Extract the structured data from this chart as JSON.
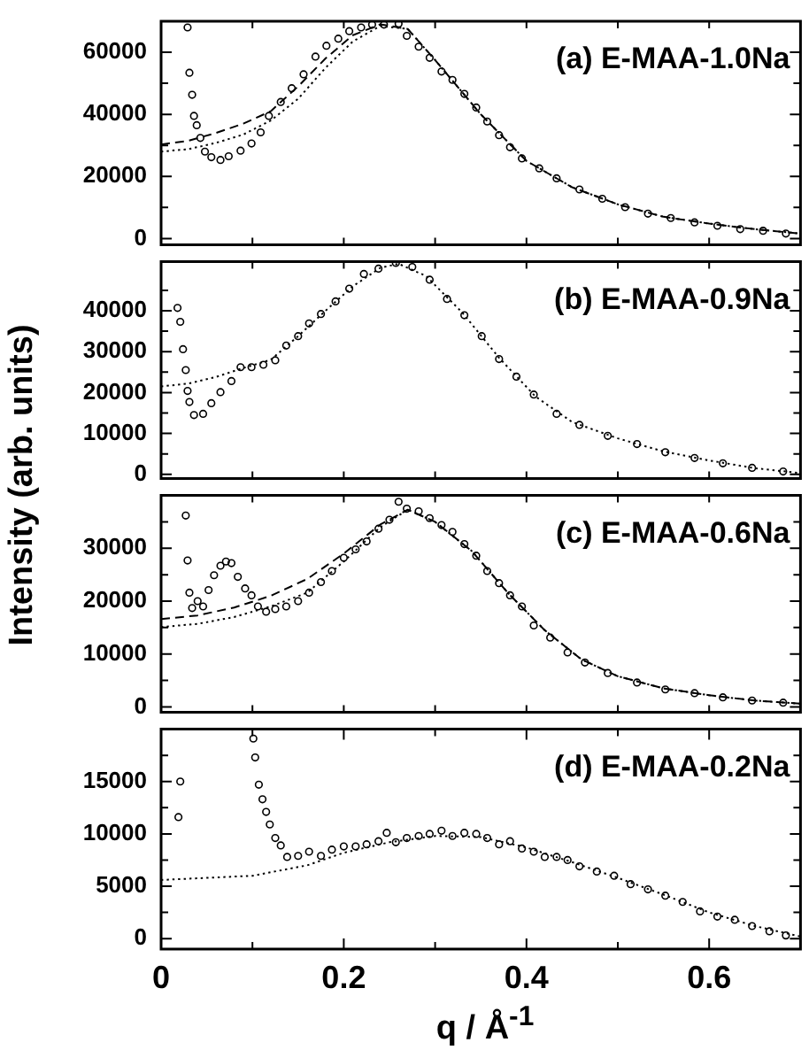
{
  "chart_data": [
    {
      "type": "scatter",
      "ylabel": "Intensity (arb. units)",
      "annotations": [
        "(a) E-MAA-1.0Na"
      ],
      "tick_labels": "y",
      "xlim": [
        0,
        0.7
      ],
      "xticks": [
        {
          "value": 0,
          "label": null
        },
        {
          "value": 0.1,
          "label": null
        },
        {
          "value": 0.2,
          "label": null
        },
        {
          "value": 0.3,
          "label": null
        },
        {
          "value": 0.4,
          "label": null
        },
        {
          "value": 0.5,
          "label": null
        },
        {
          "value": 0.6,
          "label": null
        }
      ],
      "ylim": [
        -2000,
        70000
      ],
      "yticks": [
        0,
        {
          "value": 10000,
          "label": null
        },
        20000,
        {
          "value": 30000,
          "label": null
        },
        40000,
        {
          "value": 50000,
          "label": null
        },
        60000
      ],
      "series": [
        {
          "marker": "circle",
          "color": "#000000",
          "x": [
            0.029,
            0.031,
            0.034,
            0.036,
            0.039,
            0.043,
            0.048,
            0.055,
            0.065,
            0.074,
            0.087,
            0.099,
            0.109,
            0.118,
            0.131,
            0.143,
            0.156,
            0.169,
            0.181,
            0.194,
            0.206,
            0.219,
            0.231,
            0.244,
            0.26,
            0.269,
            0.282,
            0.294,
            0.307,
            0.319,
            0.332,
            0.345,
            0.357,
            0.37,
            0.382,
            0.395,
            0.414,
            0.433,
            0.458,
            0.483,
            0.508,
            0.533,
            0.558,
            0.584,
            0.609,
            0.634,
            0.659,
            0.684
          ],
          "values": [
            68000,
            53400,
            46300,
            39500,
            36500,
            32400,
            28000,
            26200,
            25300,
            26500,
            28300,
            30600,
            34200,
            39500,
            44000,
            48400,
            52900,
            58600,
            62100,
            64400,
            66800,
            68000,
            68900,
            68900,
            69200,
            65300,
            61800,
            58200,
            53800,
            51100,
            46600,
            42200,
            37700,
            33300,
            29400,
            25800,
            22600,
            19400,
            15800,
            12800,
            10100,
            8000,
            6600,
            5200,
            4100,
            3000,
            2500,
            1600
          ]
        },
        {
          "type": "line",
          "line_style": "dashed",
          "color": "#000000",
          "x": [
            0,
            0.03,
            0.06,
            0.09,
            0.12,
            0.15,
            0.18,
            0.21,
            0.24,
            0.27,
            0.3,
            0.35,
            0.4,
            0.45,
            0.5,
            0.55,
            0.6,
            0.65,
            0.7
          ],
          "values": [
            30300,
            31500,
            34000,
            37000,
            41000,
            49000,
            58000,
            65500,
            69000,
            67500,
            57500,
            40000,
            25000,
            16500,
            11000,
            7000,
            4800,
            3000,
            1600
          ]
        },
        {
          "type": "line",
          "line_style": "dotted",
          "color": "#000000",
          "x": [
            0,
            0.03,
            0.06,
            0.09,
            0.12,
            0.15,
            0.18,
            0.21,
            0.24,
            0.27,
            0.3,
            0.35,
            0.4,
            0.45,
            0.5,
            0.55,
            0.6,
            0.65,
            0.7
          ],
          "values": [
            28000,
            28800,
            30800,
            33500,
            38000,
            45000,
            55000,
            63500,
            68500,
            67500,
            57500,
            40000,
            25000,
            16500,
            11000,
            7000,
            4800,
            3000,
            1600
          ]
        }
      ]
    },
    {
      "type": "scatter",
      "annotations": [
        "(b) E-MAA-0.9Na"
      ],
      "tick_labels": "y",
      "xlim": [
        0,
        0.7
      ],
      "xticks": [
        {
          "value": 0,
          "label": null
        },
        {
          "value": 0.1,
          "label": null
        },
        {
          "value": 0.2,
          "label": null
        },
        {
          "value": 0.3,
          "label": null
        },
        {
          "value": 0.4,
          "label": null
        },
        {
          "value": 0.5,
          "label": null
        },
        {
          "value": 0.6,
          "label": null
        }
      ],
      "ylim": [
        -1000,
        52000
      ],
      "yticks": [
        0,
        {
          "value": 5000,
          "label": null
        },
        10000,
        {
          "value": 15000,
          "label": null
        },
        20000,
        {
          "value": 25000,
          "label": null
        },
        30000,
        {
          "value": 35000,
          "label": null
        },
        40000,
        {
          "value": 45000,
          "label": null
        }
      ],
      "series": [
        {
          "marker": "circle",
          "color": "#000000",
          "x": [
            0.018,
            0.021,
            0.024,
            0.027,
            0.029,
            0.031,
            0.036,
            0.046,
            0.055,
            0.065,
            0.077,
            0.087,
            0.099,
            0.112,
            0.125,
            0.137,
            0.15,
            0.162,
            0.175,
            0.191,
            0.206,
            0.222,
            0.238,
            0.257,
            0.275,
            0.294,
            0.313,
            0.332,
            0.351,
            0.37,
            0.389,
            0.408,
            0.433,
            0.458,
            0.489,
            0.521,
            0.552,
            0.584,
            0.615,
            0.647,
            0.681
          ],
          "values": [
            40700,
            37300,
            30600,
            25500,
            20400,
            17700,
            14500,
            14800,
            17400,
            20100,
            22800,
            26200,
            26200,
            26800,
            27900,
            31500,
            33800,
            36900,
            39200,
            42300,
            45400,
            49000,
            50300,
            51700,
            50700,
            47600,
            42900,
            38900,
            33800,
            28200,
            23900,
            19500,
            14800,
            12100,
            9400,
            7400,
            5400,
            4000,
            2700,
            1600,
            700
          ]
        },
        {
          "type": "line",
          "line_style": "dotted",
          "color": "#000000",
          "x": [
            0,
            0.03,
            0.06,
            0.09,
            0.12,
            0.15,
            0.18,
            0.21,
            0.24,
            0.26,
            0.29,
            0.33,
            0.37,
            0.41,
            0.45,
            0.5,
            0.55,
            0.6,
            0.65,
            0.7
          ],
          "values": [
            21500,
            22200,
            23800,
            26000,
            28000,
            33800,
            40000,
            46000,
            50500,
            51500,
            48500,
            39500,
            28500,
            19000,
            12800,
            8800,
            5600,
            3400,
            1500,
            300
          ]
        }
      ]
    },
    {
      "type": "scatter",
      "annotations": [
        "(c) E-MAA-0.6Na"
      ],
      "tick_labels": "y",
      "xlim": [
        0,
        0.7
      ],
      "xticks": [
        {
          "value": 0,
          "label": null
        },
        {
          "value": 0.1,
          "label": null
        },
        {
          "value": 0.2,
          "label": null
        },
        {
          "value": 0.3,
          "label": null
        },
        {
          "value": 0.4,
          "label": null
        },
        {
          "value": 0.5,
          "label": null
        },
        {
          "value": 0.6,
          "label": null
        }
      ],
      "ylim": [
        -1000,
        40000
      ],
      "yticks": [
        0,
        {
          "value": 5000,
          "label": null
        },
        10000,
        {
          "value": 15000,
          "label": null
        },
        20000,
        {
          "value": 25000,
          "label": null
        },
        30000,
        {
          "value": 35000,
          "label": null
        }
      ],
      "series": [
        {
          "marker": "circle",
          "color": "#000000",
          "x": [
            0.027,
            0.029,
            0.031,
            0.034,
            0.04,
            0.046,
            0.052,
            0.058,
            0.065,
            0.071,
            0.077,
            0.084,
            0.092,
            0.099,
            0.106,
            0.115,
            0.125,
            0.137,
            0.15,
            0.162,
            0.175,
            0.187,
            0.2,
            0.213,
            0.225,
            0.238,
            0.25,
            0.26,
            0.269,
            0.282,
            0.294,
            0.307,
            0.319,
            0.332,
            0.345,
            0.357,
            0.37,
            0.382,
            0.395,
            0.408,
            0.426,
            0.445,
            0.464,
            0.489,
            0.521,
            0.552,
            0.584,
            0.615,
            0.647,
            0.681
          ],
          "values": [
            36200,
            27700,
            21600,
            18700,
            20000,
            19000,
            22100,
            24900,
            26700,
            27500,
            27200,
            24600,
            22400,
            21100,
            19000,
            18000,
            18500,
            19000,
            20000,
            21600,
            23600,
            25700,
            28200,
            29800,
            31300,
            33700,
            35400,
            38800,
            37500,
            37000,
            35700,
            34400,
            33100,
            30800,
            28600,
            25700,
            23400,
            21100,
            19000,
            15400,
            13100,
            10300,
            8400,
            6400,
            4600,
            3300,
            2600,
            1800,
            1200,
            800
          ]
        },
        {
          "type": "line",
          "line_style": "dashed",
          "color": "#000000",
          "x": [
            0,
            0.04,
            0.08,
            0.12,
            0.16,
            0.2,
            0.24,
            0.27,
            0.3,
            0.34,
            0.38,
            0.42,
            0.46,
            0.5,
            0.55,
            0.6,
            0.65,
            0.7
          ],
          "values": [
            16600,
            17300,
            18800,
            21000,
            24200,
            29000,
            34500,
            37300,
            35000,
            29500,
            21500,
            14500,
            9000,
            5800,
            3500,
            2200,
            1200,
            600
          ]
        },
        {
          "type": "line",
          "line_style": "dotted",
          "color": "#000000",
          "x": [
            0,
            0.04,
            0.08,
            0.12,
            0.16,
            0.2,
            0.24,
            0.27,
            0.3,
            0.34,
            0.38,
            0.42,
            0.46,
            0.5,
            0.55,
            0.6,
            0.65,
            0.7
          ],
          "values": [
            15100,
            15700,
            17000,
            19000,
            21600,
            27500,
            34000,
            37300,
            35000,
            29500,
            21500,
            14500,
            9000,
            5800,
            3500,
            2200,
            1200,
            600
          ]
        }
      ]
    },
    {
      "type": "scatter",
      "annotations": [
        "(d) E-MAA-0.2Na"
      ],
      "xlabel": "q / Å$^{-1}$",
      "xlim": [
        0,
        0.7
      ],
      "xticks": [
        0,
        {
          "value": 0.1,
          "label": null
        },
        0.2,
        {
          "value": 0.3,
          "label": null
        },
        0.4,
        {
          "value": 0.5,
          "label": null
        },
        0.6
      ],
      "ylim": [
        -1000,
        20000
      ],
      "yticks": [
        0,
        {
          "value": 2500,
          "label": null
        },
        5000,
        {
          "value": 7500,
          "label": null
        },
        10000,
        {
          "value": 12500,
          "label": null
        },
        15000,
        {
          "value": 17500,
          "label": null
        }
      ],
      "series": [
        {
          "marker": "circle",
          "color": "#000000",
          "x": [
            0.019,
            0.021,
            0.101,
            0.103,
            0.107,
            0.111,
            0.115,
            0.119,
            0.125,
            0.131,
            0.138,
            0.15,
            0.162,
            0.175,
            0.187,
            0.2,
            0.213,
            0.225,
            0.238,
            0.247,
            0.257,
            0.269,
            0.282,
            0.294,
            0.307,
            0.319,
            0.332,
            0.345,
            0.357,
            0.37,
            0.382,
            0.395,
            0.408,
            0.42,
            0.433,
            0.445,
            0.458,
            0.477,
            0.496,
            0.514,
            0.533,
            0.552,
            0.571,
            0.59,
            0.609,
            0.628,
            0.647,
            0.666,
            0.684
          ],
          "values": [
            11600,
            15000,
            19100,
            17300,
            14700,
            13300,
            12100,
            10900,
            9600,
            8900,
            7800,
            7900,
            8300,
            7900,
            8500,
            8800,
            8800,
            9000,
            9300,
            10100,
            9200,
            9600,
            9800,
            10000,
            10300,
            9800,
            10100,
            10000,
            9600,
            9000,
            9300,
            8600,
            8300,
            7800,
            7800,
            7500,
            6900,
            6400,
            6000,
            5200,
            4700,
            4100,
            3500,
            2600,
            2100,
            1800,
            1200,
            700,
            300
          ]
        },
        {
          "type": "line",
          "line_style": "dotted",
          "color": "#000000",
          "x": [
            0,
            0.05,
            0.1,
            0.16,
            0.2,
            0.25,
            0.3,
            0.35,
            0.4,
            0.45,
            0.5,
            0.55,
            0.6,
            0.65,
            0.7
          ],
          "values": [
            5600,
            5800,
            6000,
            7000,
            8200,
            9200,
            9800,
            9700,
            8700,
            7300,
            5800,
            4200,
            2500,
            1200,
            200
          ]
        }
      ]
    }
  ]
}
